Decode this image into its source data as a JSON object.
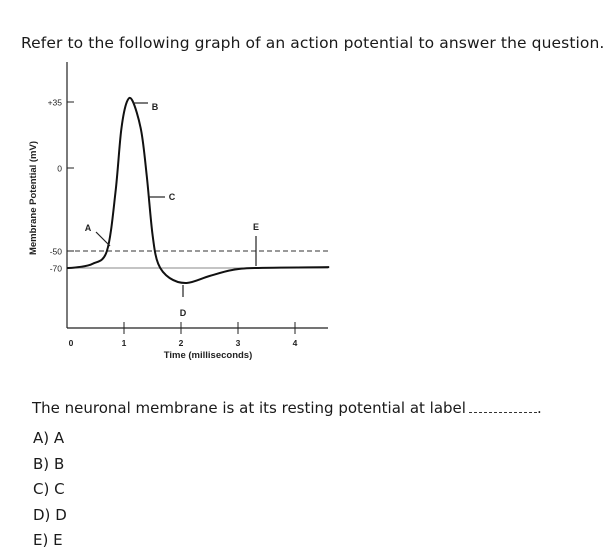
{
  "question": {
    "intro": "Refer to the following graph of an action potential to answer the question.",
    "prompt": "The neuronal membrane is at its resting potential at label",
    "options": [
      {
        "letter": "A)",
        "text": "A"
      },
      {
        "letter": "B)",
        "text": "B"
      },
      {
        "letter": "C)",
        "text": "C"
      },
      {
        "letter": "D)",
        "text": "D"
      },
      {
        "letter": "E)",
        "text": "E"
      }
    ]
  },
  "chart_data": {
    "type": "line",
    "title": "",
    "xlabel": "Time (milliseconds)",
    "ylabel": "Membrane Potential (mV)",
    "x_ticks": [
      "0",
      "1",
      "2",
      "3",
      "4"
    ],
    "y_ticks": [
      "+35",
      "0",
      "-50",
      "-70"
    ],
    "reference_lines": [
      {
        "y": -50,
        "style": "dashed"
      },
      {
        "y": -70,
        "style": "solid"
      }
    ],
    "series": [
      {
        "points": [
          [
            0.0,
            -70
          ],
          [
            0.2,
            -69
          ],
          [
            0.45,
            -65
          ],
          [
            0.7,
            -50
          ],
          [
            0.85,
            -15
          ],
          [
            0.95,
            20
          ],
          [
            1.05,
            35
          ],
          [
            1.15,
            36
          ],
          [
            1.3,
            20
          ],
          [
            1.4,
            -5
          ],
          [
            1.5,
            -40
          ],
          [
            1.6,
            -65
          ],
          [
            1.8,
            -80
          ],
          [
            2.1,
            -85
          ],
          [
            2.5,
            -78
          ],
          [
            2.9,
            -72
          ],
          [
            3.3,
            -70
          ],
          [
            4.6,
            -69
          ]
        ]
      }
    ],
    "labels": [
      {
        "text": "A",
        "x": 0.7,
        "y": -50
      },
      {
        "text": "B",
        "x": 1.1,
        "y": 35
      },
      {
        "text": "C",
        "x": 1.4,
        "y": 0
      },
      {
        "text": "D",
        "x": 2.1,
        "y": -85
      },
      {
        "text": "E",
        "x": 3.3,
        "y": -70
      }
    ]
  }
}
